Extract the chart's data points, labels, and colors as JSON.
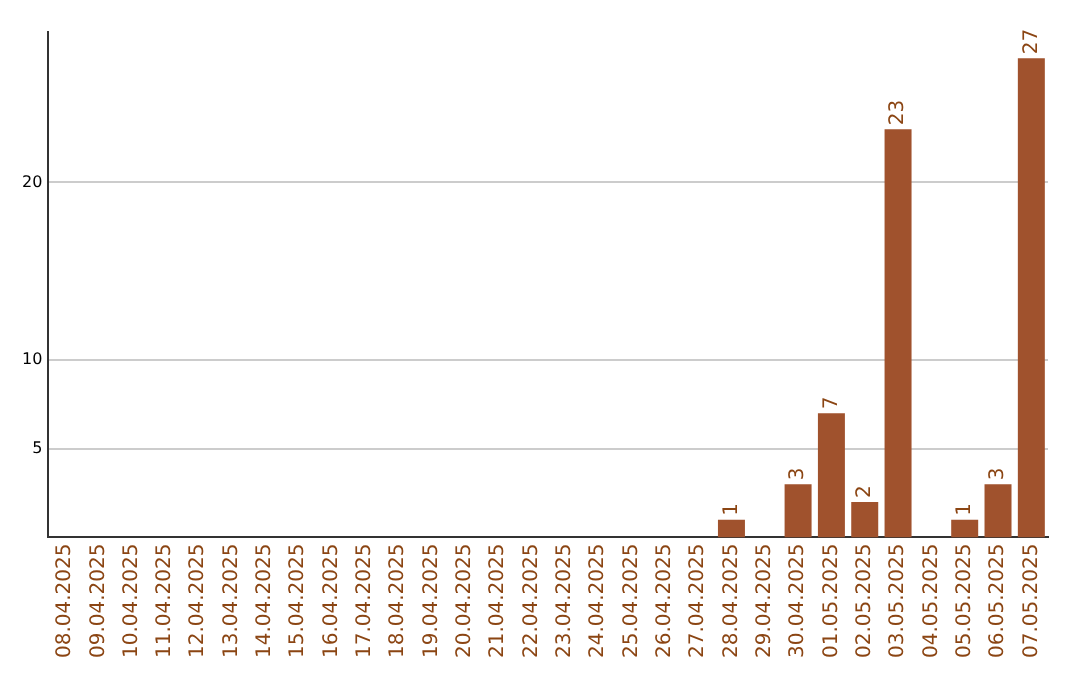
{
  "chart_data": {
    "type": "bar",
    "categories": [
      "08.04.2025",
      "09.04.2025",
      "10.04.2025",
      "11.04.2025",
      "12.04.2025",
      "13.04.2025",
      "14.04.2025",
      "15.04.2025",
      "16.04.2025",
      "17.04.2025",
      "18.04.2025",
      "19.04.2025",
      "20.04.2025",
      "21.04.2025",
      "22.04.2025",
      "23.04.2025",
      "24.04.2025",
      "25.04.2025",
      "26.04.2025",
      "27.04.2025",
      "28.04.2025",
      "29.04.2025",
      "30.04.2025",
      "01.05.2025",
      "02.05.2025",
      "03.05.2025",
      "04.05.2025",
      "05.05.2025",
      "06.05.2025",
      "07.05.2025"
    ],
    "values": [
      0,
      0,
      0,
      0,
      0,
      0,
      0,
      0,
      0,
      0,
      0,
      0,
      0,
      0,
      0,
      0,
      0,
      0,
      0,
      0,
      1,
      0,
      3,
      7,
      2,
      23,
      0,
      1,
      3,
      27
    ],
    "value_labels": [
      null,
      null,
      null,
      null,
      null,
      null,
      null,
      null,
      null,
      null,
      null,
      null,
      null,
      null,
      null,
      null,
      null,
      null,
      null,
      null,
      "1",
      null,
      "3",
      "7",
      "2",
      "23",
      null,
      "1",
      "3",
      "27"
    ],
    "color": "#a0522d",
    "ylim": [
      0,
      28.5
    ],
    "yticks": [
      5,
      10,
      20
    ],
    "grid": "y",
    "legend": false
  }
}
